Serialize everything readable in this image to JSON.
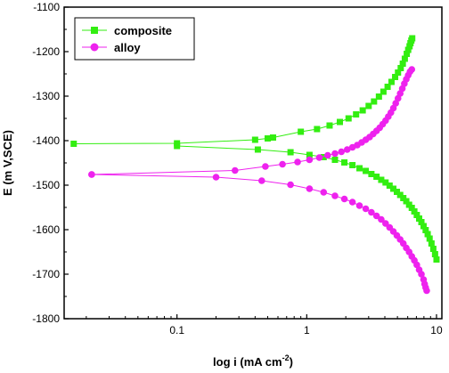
{
  "chart_data": {
    "type": "scatter",
    "title": "",
    "xlabel": "log i (mA cm",
    "xlabel_sup": "-2",
    "xlabel_close": ")",
    "ylabel": "E (m V,SCE)",
    "x_scale": "log",
    "xlim": [
      0.0135,
      11
    ],
    "ylim": [
      -1800,
      -1100
    ],
    "x_ticks": [
      0.1,
      1,
      10
    ],
    "x_tick_labels": [
      "0.1",
      "1",
      "10"
    ],
    "y_ticks": [
      -1800,
      -1700,
      -1600,
      -1500,
      -1400,
      -1300,
      -1200,
      -1100
    ],
    "y_tick_labels": [
      "-1800",
      "-1700",
      "-1600",
      "-1500",
      "-1400",
      "-1300",
      "-1200",
      "-1100"
    ],
    "grid": false,
    "legend_position": "top-left",
    "series": [
      {
        "name": "composite",
        "color": "#33ee11",
        "marker": "square",
        "branches": [
          {
            "x": [
              0.016,
              0.1,
              0.4,
              0.5,
              0.55,
              0.9,
              1.2,
              1.5,
              1.8,
              2.1,
              2.4,
              2.7,
              3.0,
              3.3,
              3.6,
              3.9,
              4.2,
              4.5,
              4.8,
              5.05,
              5.3,
              5.5,
              5.7,
              5.9,
              6.05,
              6.2,
              6.3,
              6.4,
              6.5
            ],
            "y": [
              -1407,
              -1406,
              -1398,
              -1395,
              -1393,
              -1380,
              -1374,
              -1366,
              -1358,
              -1350,
              -1341,
              -1332,
              -1322,
              -1312,
              -1301,
              -1290,
              -1279,
              -1268,
              -1257,
              -1247,
              -1237,
              -1227,
              -1216,
              -1205,
              -1196,
              -1188,
              -1181,
              -1175,
              -1170
            ]
          },
          {
            "x": [
              0.1,
              0.42,
              0.75,
              1.05,
              1.35,
              1.65,
              1.95,
              2.25,
              2.55,
              2.85,
              3.15,
              3.45,
              3.75,
              4.05,
              4.35,
              4.65,
              4.95,
              5.25,
              5.55,
              5.85,
              6.15,
              6.45,
              6.75,
              7.05,
              7.35,
              7.65,
              7.95,
              8.25,
              8.55,
              8.85,
              9.15,
              9.45,
              9.75,
              10.0
            ],
            "y": [
              -1412,
              -1420,
              -1426,
              -1432,
              -1437,
              -1443,
              -1449,
              -1455,
              -1462,
              -1468,
              -1475,
              -1481,
              -1488,
              -1494,
              -1501,
              -1508,
              -1515,
              -1522,
              -1529,
              -1536,
              -1544,
              -1551,
              -1559,
              -1567,
              -1575,
              -1583,
              -1592,
              -1601,
              -1610,
              -1620,
              -1631,
              -1643,
              -1655,
              -1667
            ]
          }
        ]
      },
      {
        "name": "alloy",
        "color": "#ee22ee",
        "marker": "circle",
        "branches": [
          {
            "x": [
              0.022,
              0.28,
              0.48,
              0.65,
              0.85,
              1.05,
              1.25,
              1.45,
              1.65,
              1.85,
              2.05,
              2.25,
              2.45,
              2.65,
              2.85,
              3.05,
              3.25,
              3.45,
              3.65,
              3.85,
              4.05,
              4.25,
              4.45,
              4.65,
              4.85,
              5.05,
              5.25,
              5.45,
              5.65,
              5.85,
              6.05,
              6.25,
              6.45
            ],
            "y": [
              -1476,
              -1467,
              -1458,
              -1453,
              -1448,
              -1443,
              -1438,
              -1433,
              -1429,
              -1425,
              -1420,
              -1415,
              -1410,
              -1404,
              -1398,
              -1392,
              -1385,
              -1378,
              -1371,
              -1363,
              -1355,
              -1346,
              -1337,
              -1327,
              -1316,
              -1305,
              -1294,
              -1283,
              -1272,
              -1262,
              -1253,
              -1245,
              -1240
            ]
          },
          {
            "x": [
              0.022,
              0.2,
              0.45,
              0.75,
              1.05,
              1.35,
              1.65,
              1.95,
              2.25,
              2.55,
              2.85,
              3.15,
              3.45,
              3.75,
              4.05,
              4.35,
              4.65,
              4.95,
              5.25,
              5.55,
              5.85,
              6.15,
              6.45,
              6.75,
              7.05,
              7.35,
              7.65,
              7.95,
              8.1,
              8.25,
              8.4
            ],
            "y": [
              -1476,
              -1482,
              -1490,
              -1499,
              -1508,
              -1516,
              -1524,
              -1531,
              -1538,
              -1546,
              -1553,
              -1561,
              -1569,
              -1577,
              -1586,
              -1595,
              -1604,
              -1613,
              -1622,
              -1631,
              -1641,
              -1650,
              -1660,
              -1669,
              -1679,
              -1690,
              -1700,
              -1712,
              -1722,
              -1730,
              -1737
            ]
          }
        ]
      }
    ]
  }
}
